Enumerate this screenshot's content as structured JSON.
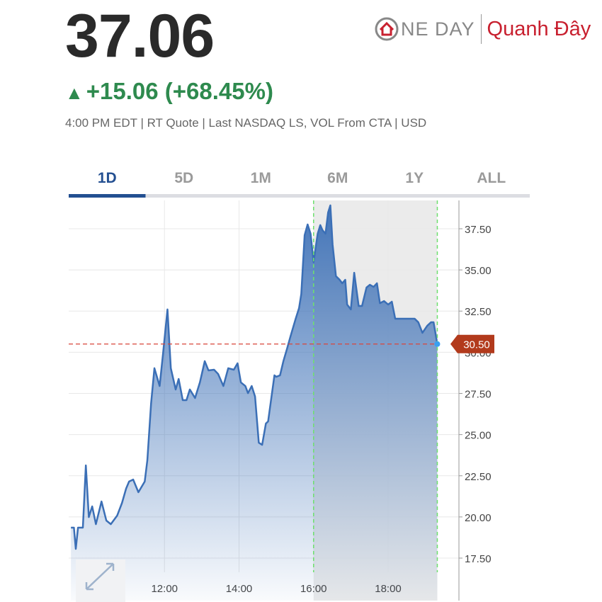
{
  "header": {
    "price": "37.06",
    "change": "+15.06 (+68.45%)",
    "quote_info": "4:00 PM EDT | RT Quote | Last NASDAQ LS, VOL From CTA | USD"
  },
  "watermark": {
    "brand": "NE DAY",
    "tagline": "Quanh Đây"
  },
  "tabs": {
    "items": [
      "1D",
      "5D",
      "1M",
      "6M",
      "1Y",
      "ALL"
    ],
    "active": "1D"
  },
  "chart_data": {
    "type": "line",
    "x": [
      9.49,
      9.57,
      9.62,
      9.68,
      9.81,
      9.89,
      9.97,
      10.06,
      10.16,
      10.31,
      10.44,
      10.56,
      10.73,
      10.86,
      10.97,
      11.05,
      11.16,
      11.3,
      11.47,
      11.54,
      11.64,
      11.73,
      11.87,
      11.96,
      12.08,
      12.17,
      12.3,
      12.38,
      12.49,
      12.59,
      12.68,
      12.82,
      12.95,
      13.08,
      13.18,
      13.33,
      13.44,
      13.58,
      13.71,
      13.86,
      13.96,
      14.05,
      14.17,
      14.24,
      14.34,
      14.43,
      14.53,
      14.62,
      14.72,
      14.78,
      14.95,
      15.0,
      15.1,
      15.19,
      15.29,
      15.38,
      15.52,
      15.61,
      15.67,
      15.76,
      15.84,
      15.92,
      16.0,
      16.11,
      16.18,
      16.24,
      16.32,
      16.39,
      16.45,
      16.51,
      16.6,
      16.7,
      16.77,
      16.85,
      16.9,
      17.0,
      17.09,
      17.21,
      17.3,
      17.42,
      17.51,
      17.61,
      17.7,
      17.78,
      17.89,
      18.0,
      18.1,
      18.19,
      18.35,
      18.46,
      18.58,
      18.71,
      18.81,
      18.92,
      19.05,
      19.15,
      19.22,
      19.32
    ],
    "series": [
      {
        "color": "#3b6fb6",
        "values": [
          19.35,
          19.35,
          18.06,
          19.35,
          19.35,
          23.13,
          19.99,
          20.64,
          19.56,
          20.94,
          19.78,
          19.56,
          20.08,
          20.85,
          21.72,
          22.15,
          22.27,
          21.5,
          22.15,
          23.44,
          26.88,
          29.03,
          27.95,
          29.89,
          32.6,
          29.03,
          27.74,
          28.38,
          27.09,
          27.09,
          27.74,
          27.22,
          28.17,
          29.46,
          28.9,
          28.94,
          28.68,
          27.95,
          29.03,
          28.94,
          29.33,
          28.17,
          27.95,
          27.52,
          27.95,
          27.31,
          24.51,
          24.38,
          25.67,
          25.8,
          28.6,
          28.51,
          28.6,
          29.46,
          30.23,
          30.96,
          32.04,
          32.68,
          33.54,
          37.11,
          37.76,
          37.2,
          35.48,
          37.2,
          37.72,
          37.41,
          37.2,
          38.49,
          38.92,
          36.55,
          34.62,
          34.4,
          34.19,
          34.4,
          32.9,
          32.6,
          34.83,
          32.81,
          32.81,
          33.93,
          34.1,
          33.97,
          34.19,
          32.98,
          33.11,
          32.9,
          33.07,
          32.04,
          32.04,
          32.04,
          32.04,
          32.04,
          31.82,
          31.18,
          31.61,
          31.82,
          31.82,
          30.5
        ]
      }
    ],
    "xlim": [
      9.43,
      19.9
    ],
    "ylim": [
      14.92,
      39.22
    ],
    "xticks": [
      {
        "value": 12,
        "label": "12:00"
      },
      {
        "value": 14,
        "label": "14:00"
      },
      {
        "value": 16,
        "label": "16:00"
      },
      {
        "value": 18,
        "label": "18:00"
      }
    ],
    "yticks": [
      {
        "value": 17.5,
        "label": "17.50"
      },
      {
        "value": 20,
        "label": "20.00"
      },
      {
        "value": 22.5,
        "label": "22.50"
      },
      {
        "value": 25,
        "label": "25.00"
      },
      {
        "value": 27.5,
        "label": "27.50"
      },
      {
        "value": 30,
        "label": "30.00"
      },
      {
        "value": 32.5,
        "label": "32.50"
      },
      {
        "value": 35,
        "label": "35.00"
      },
      {
        "value": 37.5,
        "label": "37.50"
      }
    ],
    "grid": true,
    "shaded_range": [
      16,
      19.32
    ],
    "current_price": {
      "value": 30.5,
      "label": "30.50"
    }
  }
}
